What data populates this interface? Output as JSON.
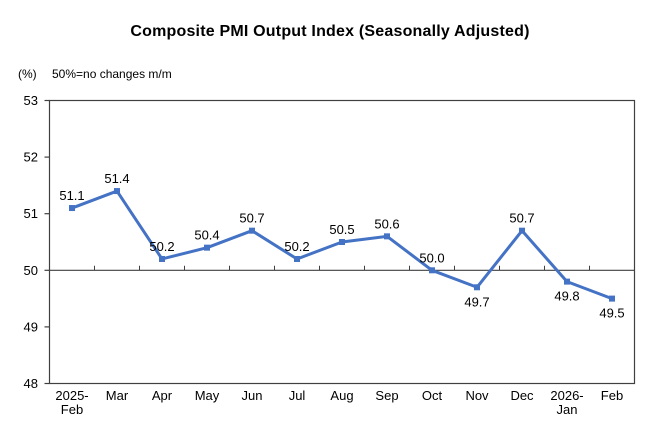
{
  "header": {
    "title": "Composite PMI Output Index (Seasonally Adjusted)",
    "unit_label": "(%)",
    "subtitle": "50%=no changes m/m"
  },
  "colors": {
    "line": "#4472C4",
    "axis": "#404040",
    "text": "#000000",
    "background": "#ffffff"
  },
  "chart_data": {
    "type": "line",
    "title": "Composite PMI Output Index (Seasonally Adjusted)",
    "categories": [
      "2025-Feb",
      "Mar",
      "Apr",
      "May",
      "Jun",
      "Jul",
      "Aug",
      "Sep",
      "Oct",
      "Nov",
      "Dec",
      "2026-Jan",
      "Feb"
    ],
    "values": [
      51.1,
      51.4,
      50.2,
      50.4,
      50.7,
      50.2,
      50.5,
      50.6,
      50.0,
      49.7,
      50.7,
      49.8,
      49.5
    ],
    "ylabel": "(%)",
    "ylim": [
      48,
      53
    ],
    "yticks": [
      48,
      49,
      50,
      51,
      52,
      53
    ],
    "baseline": 50,
    "baseline_note": "50%=no changes m/m",
    "grid": false,
    "legend_position": "none",
    "marker": "square",
    "data_labels": true,
    "labels_below_indices": [
      9,
      11,
      12
    ]
  }
}
